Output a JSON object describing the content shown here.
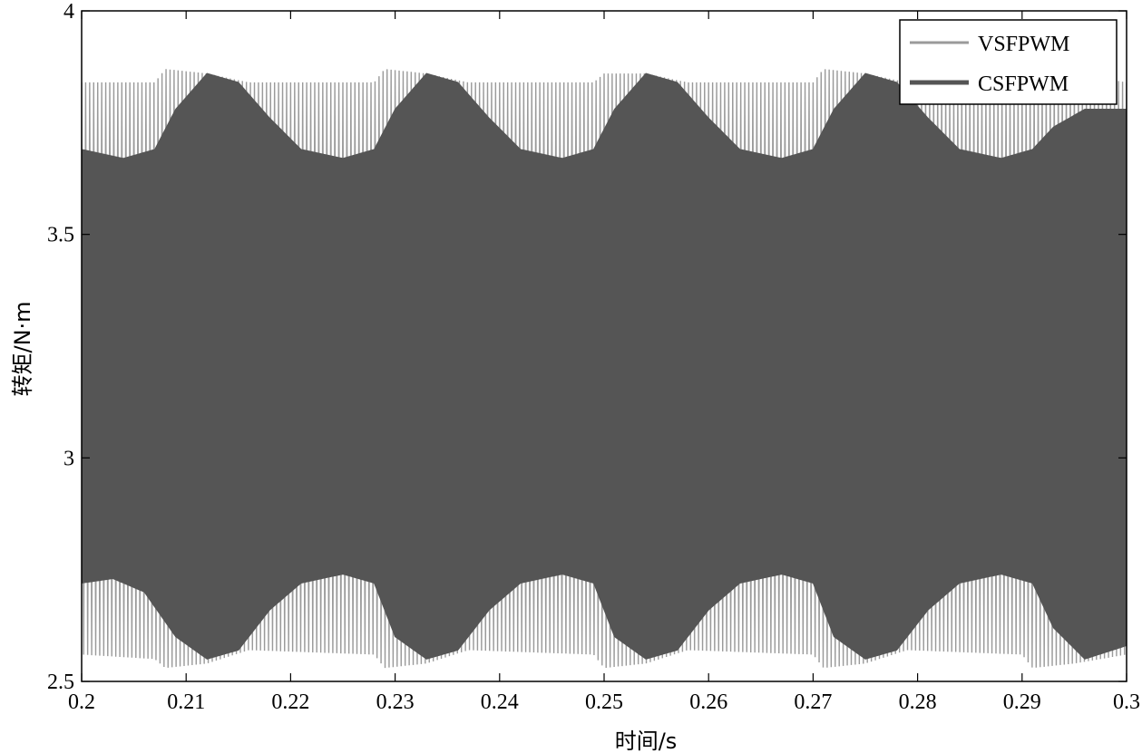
{
  "chart_data": {
    "type": "line",
    "xlabel": "时间/s",
    "ylabel": "转矩/N·m",
    "xlim": [
      0.2,
      0.3
    ],
    "ylim": [
      2.5,
      4
    ],
    "x_ticks": [
      "0.2",
      "0.21",
      "0.22",
      "0.23",
      "0.24",
      "0.25",
      "0.26",
      "0.27",
      "0.28",
      "0.29",
      "0.3"
    ],
    "y_ticks": [
      "2.5",
      "3",
      "3.5",
      "4"
    ],
    "grid": false,
    "legend_position": "top-right",
    "series": [
      {
        "name": "VSFPWM",
        "color": "#9a9a9a",
        "upper_envelope": {
          "x": [
            0.2,
            0.207,
            0.208,
            0.212,
            0.216,
            0.228,
            0.229,
            0.233,
            0.237,
            0.249,
            0.25,
            0.254,
            0.258,
            0.27,
            0.271,
            0.275,
            0.279,
            0.29,
            0.291,
            0.295,
            0.3
          ],
          "y": [
            3.84,
            3.84,
            3.87,
            3.86,
            3.84,
            3.84,
            3.87,
            3.86,
            3.84,
            3.84,
            3.86,
            3.86,
            3.84,
            3.84,
            3.87,
            3.86,
            3.84,
            3.84,
            3.86,
            3.86,
            3.84
          ]
        },
        "lower_envelope": {
          "x": [
            0.2,
            0.207,
            0.208,
            0.212,
            0.216,
            0.228,
            0.229,
            0.233,
            0.237,
            0.249,
            0.25,
            0.254,
            0.258,
            0.27,
            0.271,
            0.275,
            0.279,
            0.29,
            0.291,
            0.295,
            0.3
          ],
          "y": [
            2.56,
            2.55,
            2.53,
            2.54,
            2.57,
            2.56,
            2.53,
            2.54,
            2.57,
            2.56,
            2.53,
            2.54,
            2.57,
            2.56,
            2.53,
            2.54,
            2.57,
            2.56,
            2.53,
            2.54,
            2.56
          ]
        }
      },
      {
        "name": "CSFPWM",
        "color": "#555555",
        "upper_envelope": {
          "x": [
            0.2,
            0.204,
            0.207,
            0.209,
            0.212,
            0.215,
            0.218,
            0.221,
            0.225,
            0.228,
            0.23,
            0.233,
            0.236,
            0.239,
            0.242,
            0.246,
            0.249,
            0.251,
            0.254,
            0.257,
            0.26,
            0.263,
            0.267,
            0.27,
            0.272,
            0.275,
            0.278,
            0.281,
            0.284,
            0.288,
            0.291,
            0.293,
            0.296,
            0.3
          ],
          "y": [
            3.69,
            3.67,
            3.69,
            3.78,
            3.86,
            3.84,
            3.76,
            3.69,
            3.67,
            3.69,
            3.78,
            3.86,
            3.84,
            3.76,
            3.69,
            3.67,
            3.69,
            3.78,
            3.86,
            3.84,
            3.76,
            3.69,
            3.67,
            3.69,
            3.78,
            3.86,
            3.84,
            3.76,
            3.69,
            3.67,
            3.69,
            3.74,
            3.78,
            3.78
          ]
        },
        "lower_envelope": {
          "x": [
            0.2,
            0.203,
            0.206,
            0.209,
            0.212,
            0.215,
            0.218,
            0.221,
            0.225,
            0.228,
            0.23,
            0.233,
            0.236,
            0.239,
            0.242,
            0.246,
            0.249,
            0.251,
            0.254,
            0.257,
            0.26,
            0.263,
            0.267,
            0.27,
            0.272,
            0.275,
            0.278,
            0.281,
            0.284,
            0.288,
            0.291,
            0.293,
            0.296,
            0.3
          ],
          "y": [
            2.72,
            2.73,
            2.7,
            2.6,
            2.55,
            2.57,
            2.66,
            2.72,
            2.74,
            2.72,
            2.6,
            2.55,
            2.57,
            2.66,
            2.72,
            2.74,
            2.72,
            2.6,
            2.55,
            2.57,
            2.66,
            2.72,
            2.74,
            2.72,
            2.6,
            2.55,
            2.57,
            2.66,
            2.72,
            2.74,
            2.72,
            2.62,
            2.55,
            2.58
          ]
        }
      }
    ]
  }
}
